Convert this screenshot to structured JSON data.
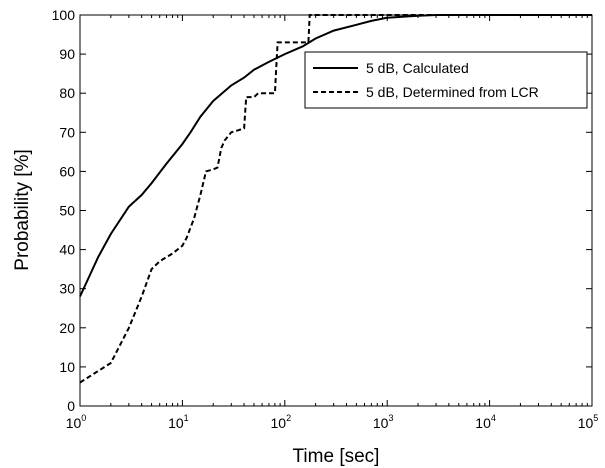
{
  "chart_data": {
    "type": "line",
    "title": "",
    "xlabel": "Time [sec]",
    "ylabel": "Probability [%]",
    "xscale": "log",
    "xlim": [
      1,
      100000
    ],
    "ylim": [
      0,
      100
    ],
    "x_tick_base": "10",
    "x_tick_exponents": [
      "0",
      "1",
      "2",
      "3",
      "4",
      "5"
    ],
    "y_ticks": [
      "0",
      "10",
      "20",
      "30",
      "40",
      "50",
      "60",
      "70",
      "80",
      "90",
      "100"
    ],
    "grid": false,
    "legend_position": "top-right",
    "series": [
      {
        "name": "5 dB, Calculated",
        "style": "solid",
        "color": "#000000",
        "points": [
          [
            1,
            28
          ],
          [
            1.5,
            38
          ],
          [
            2,
            44
          ],
          [
            3,
            51
          ],
          [
            4,
            54
          ],
          [
            5,
            57
          ],
          [
            7,
            62
          ],
          [
            10,
            67
          ],
          [
            12,
            70
          ],
          [
            15,
            74
          ],
          [
            20,
            78
          ],
          [
            30,
            82
          ],
          [
            40,
            84
          ],
          [
            50,
            86
          ],
          [
            70,
            88
          ],
          [
            100,
            90
          ],
          [
            150,
            92
          ],
          [
            200,
            94
          ],
          [
            300,
            96
          ],
          [
            500,
            97.5
          ],
          [
            700,
            98.5
          ],
          [
            1000,
            99.3
          ],
          [
            2000,
            99.8
          ],
          [
            3000,
            100
          ],
          [
            100000,
            100
          ]
        ]
      },
      {
        "name": "5 dB, Determined from LCR",
        "style": "dashed",
        "color": "#000000",
        "points": [
          [
            1,
            6
          ],
          [
            2,
            11
          ],
          [
            3,
            20
          ],
          [
            4,
            28
          ],
          [
            5,
            35
          ],
          [
            6,
            37
          ],
          [
            8,
            39
          ],
          [
            10,
            41
          ],
          [
            11,
            43
          ],
          [
            13,
            48
          ],
          [
            15,
            54
          ],
          [
            17,
            60
          ],
          [
            20,
            60.5
          ],
          [
            22,
            61
          ],
          [
            24,
            66
          ],
          [
            26,
            68
          ],
          [
            30,
            70
          ],
          [
            35,
            70.5
          ],
          [
            40,
            71
          ],
          [
            42,
            79
          ],
          [
            50,
            79
          ],
          [
            55,
            80
          ],
          [
            70,
            80
          ],
          [
            80,
            80
          ],
          [
            85,
            93
          ],
          [
            100,
            93
          ],
          [
            150,
            93
          ],
          [
            170,
            93
          ],
          [
            175,
            100
          ],
          [
            100000,
            100
          ]
        ]
      }
    ]
  }
}
